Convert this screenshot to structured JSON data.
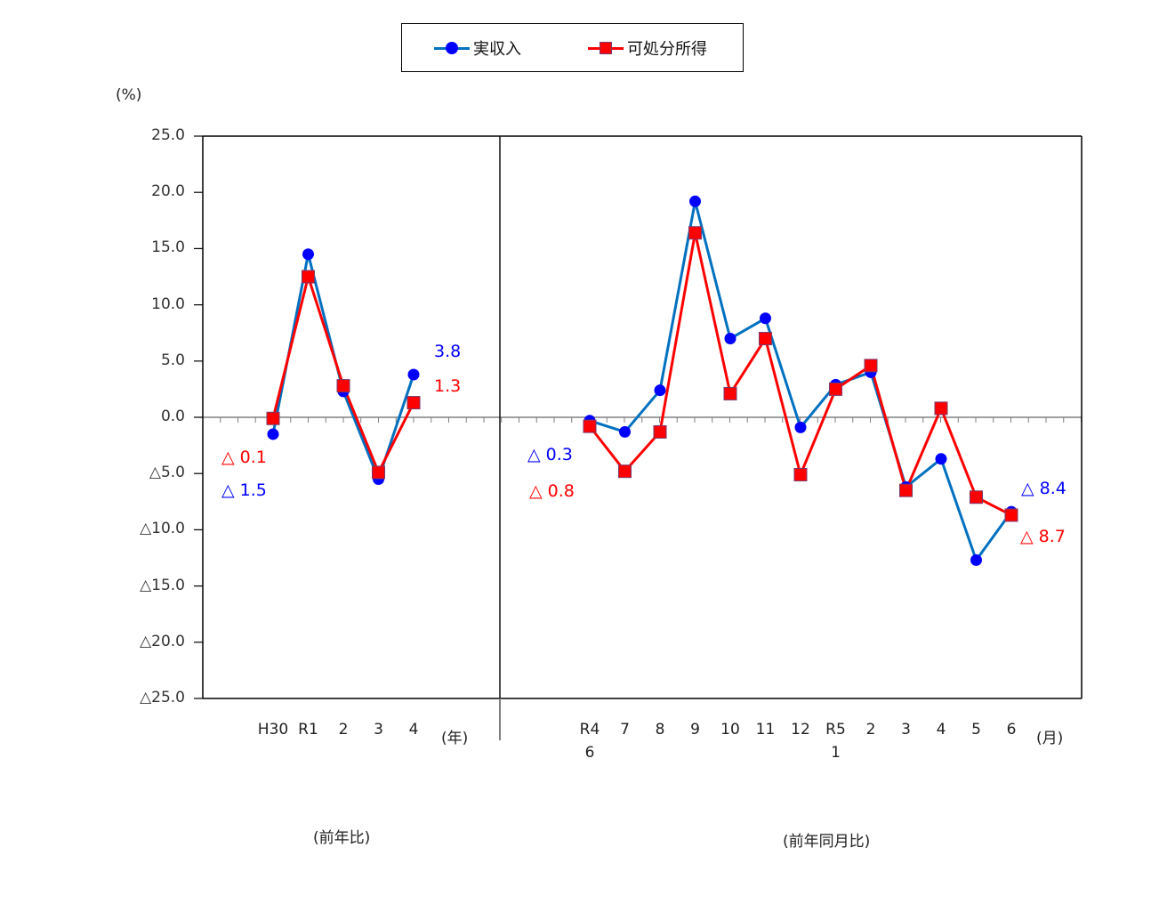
{
  "chart_data": {
    "type": "line",
    "title": "",
    "ylabel": "(%)",
    "ylim": [
      -25,
      25
    ],
    "y_ticks": [
      "25.0",
      "20.0",
      "15.0",
      "10.0",
      "5.0",
      "0.0",
      "△5.0",
      "△10.0",
      "△15.0",
      "△20.0",
      "△25.0"
    ],
    "legend": {
      "position": "top",
      "entries": [
        {
          "name": "実収入",
          "color": "#0070C0",
          "marker": "circle",
          "marker_color": "#0000FF"
        },
        {
          "name": "可処分所得",
          "color": "#FF0000",
          "marker": "square",
          "marker_color": "#FF0000"
        }
      ]
    },
    "panels": [
      {
        "id": "annual",
        "section_label": "(前年比)",
        "x_unit": "(年)",
        "categories": [
          "H30",
          "R1",
          "2",
          "3",
          "4"
        ],
        "category_labels": [
          [
            "H30"
          ],
          [
            "R1"
          ],
          [
            "2"
          ],
          [
            "3"
          ],
          [
            "4"
          ]
        ],
        "series": [
          {
            "name": "実収入",
            "values": [
              -1.5,
              14.5,
              2.3,
              -5.5,
              3.8
            ]
          },
          {
            "name": "可処分所得",
            "values": [
              -0.1,
              12.5,
              2.8,
              -4.9,
              1.3
            ]
          }
        ],
        "annotations": [
          {
            "text": "△ 0.1",
            "color": "#FF0000",
            "refers_to": "可処分所得 H30"
          },
          {
            "text": "△ 1.5",
            "color": "#0000FF",
            "refers_to": "実収入 H30"
          },
          {
            "text": "3.8",
            "color": "#0000FF",
            "refers_to": "実収入 4"
          },
          {
            "text": "1.3",
            "color": "#FF0000",
            "refers_to": "可処分所得 4"
          }
        ]
      },
      {
        "id": "monthly",
        "section_label": "(前年同月比)",
        "x_unit": "(月)",
        "categories": [
          "R4 6",
          "7",
          "8",
          "9",
          "10",
          "11",
          "12",
          "R5 1",
          "2",
          "3",
          "4",
          "5",
          "6"
        ],
        "category_labels": [
          [
            "R4",
            "6"
          ],
          [
            "7"
          ],
          [
            "8"
          ],
          [
            "9"
          ],
          [
            "10"
          ],
          [
            "11"
          ],
          [
            "12"
          ],
          [
            "R5",
            "1"
          ],
          [
            "2"
          ],
          [
            "3"
          ],
          [
            "4"
          ],
          [
            "5"
          ],
          [
            "6"
          ]
        ],
        "series": [
          {
            "name": "実収入",
            "values": [
              -0.3,
              -1.3,
              2.4,
              19.2,
              7.0,
              8.8,
              -0.9,
              2.9,
              4.0,
              -6.2,
              -3.7,
              -12.7,
              -8.4
            ]
          },
          {
            "name": "可処分所得",
            "values": [
              -0.8,
              -4.8,
              -1.3,
              16.4,
              2.1,
              7.0,
              -5.1,
              2.5,
              4.6,
              -6.5,
              0.8,
              -7.1,
              -8.7
            ]
          }
        ],
        "annotations": [
          {
            "text": "△ 0.3",
            "color": "#0000FF",
            "refers_to": "実収入 R4 6"
          },
          {
            "text": "△ 0.8",
            "color": "#FF0000",
            "refers_to": "可処分所得 R4 6"
          },
          {
            "text": "△ 8.4",
            "color": "#0000FF",
            "refers_to": "実収入 R5 6"
          },
          {
            "text": "△ 8.7",
            "color": "#FF0000",
            "refers_to": "可処分所得 R5 6"
          }
        ]
      }
    ],
    "grid": false,
    "zero_line": true
  },
  "legend": {
    "income_label": "実収入",
    "disposable_label": "可処分所得"
  },
  "axis": {
    "y_unit": "(%)",
    "year_unit": "(年)",
    "month_unit": "(月)"
  },
  "sections": {
    "annual": "(前年比)",
    "monthly": "(前年同月比)"
  },
  "labels": {
    "annual_disp_first": "△ 0.1",
    "annual_inc_first": "△ 1.5",
    "annual_inc_last": "3.8",
    "annual_disp_last": "1.3",
    "monthly_inc_first": "△ 0.3",
    "monthly_disp_first": "△ 0.8",
    "monthly_inc_last": "△ 8.4",
    "monthly_disp_last": "△ 8.7"
  },
  "colors": {
    "income_line": "#0070C0",
    "income_marker": "#0000FF",
    "disposable_line": "#FF0000",
    "disposable_marker": "#FF0000",
    "zero_line": "#808080",
    "frame": "#000000"
  }
}
